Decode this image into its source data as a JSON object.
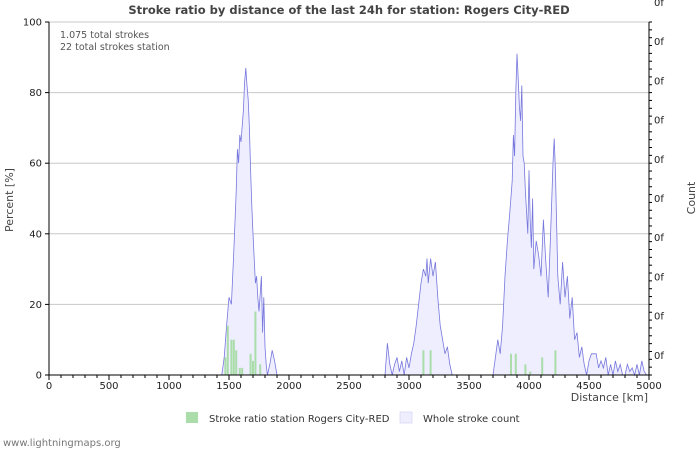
{
  "chart_data": {
    "type": "area",
    "title": "Stroke ratio by distance of the last 24h for station: Rogers City-RED",
    "xlabel": "Distance   [km]",
    "ylabel": "Percent   [%]",
    "ylabel_right": "Count",
    "xlim": [
      0,
      5000
    ],
    "ylim": [
      0,
      100
    ],
    "x_ticks": [
      0,
      500,
      1000,
      1500,
      2000,
      2500,
      3000,
      3500,
      4000,
      4500,
      5000
    ],
    "y_ticks": [
      0,
      20,
      40,
      60,
      80,
      100
    ],
    "right_tick_labels": [
      "0f",
      "0f",
      "0f",
      "0f",
      "0f",
      "0f",
      "0f",
      "0f",
      "0f",
      "0f"
    ],
    "annotations": [
      "1.075 total strokes",
      "22 total strokes station"
    ],
    "legend": [
      "Stroke ratio station Rogers City-RED",
      "Whole stroke count"
    ],
    "series": [
      {
        "name": "Whole stroke count",
        "color": "#7777dd",
        "fill": "#eeeeff",
        "points": [
          [
            1440,
            0
          ],
          [
            1460,
            5
          ],
          [
            1480,
            14
          ],
          [
            1500,
            22
          ],
          [
            1520,
            20
          ],
          [
            1540,
            35
          ],
          [
            1560,
            52
          ],
          [
            1570,
            64
          ],
          [
            1580,
            60
          ],
          [
            1590,
            68
          ],
          [
            1600,
            66
          ],
          [
            1620,
            75
          ],
          [
            1630,
            83
          ],
          [
            1640,
            87
          ],
          [
            1650,
            82
          ],
          [
            1660,
            78
          ],
          [
            1670,
            70
          ],
          [
            1680,
            58
          ],
          [
            1690,
            48
          ],
          [
            1700,
            40
          ],
          [
            1710,
            33
          ],
          [
            1720,
            26
          ],
          [
            1730,
            28
          ],
          [
            1740,
            22
          ],
          [
            1750,
            18
          ],
          [
            1760,
            23
          ],
          [
            1770,
            28
          ],
          [
            1780,
            12
          ],
          [
            1790,
            22
          ],
          [
            1800,
            8
          ],
          [
            1810,
            3
          ],
          [
            1820,
            0
          ],
          [
            1840,
            3
          ],
          [
            1860,
            7
          ],
          [
            1880,
            4
          ],
          [
            1900,
            0
          ],
          [
            2800,
            0
          ],
          [
            2820,
            9
          ],
          [
            2840,
            3
          ],
          [
            2860,
            0
          ],
          [
            2880,
            3
          ],
          [
            2900,
            5
          ],
          [
            2920,
            1
          ],
          [
            2940,
            4
          ],
          [
            2960,
            0
          ],
          [
            2980,
            5
          ],
          [
            3000,
            2
          ],
          [
            3020,
            6
          ],
          [
            3040,
            9
          ],
          [
            3060,
            14
          ],
          [
            3080,
            20
          ],
          [
            3100,
            26
          ],
          [
            3120,
            30
          ],
          [
            3140,
            28
          ],
          [
            3150,
            33
          ],
          [
            3160,
            26
          ],
          [
            3180,
            33
          ],
          [
            3200,
            28
          ],
          [
            3220,
            32
          ],
          [
            3240,
            22
          ],
          [
            3260,
            14
          ],
          [
            3280,
            10
          ],
          [
            3300,
            6
          ],
          [
            3320,
            8
          ],
          [
            3340,
            3
          ],
          [
            3360,
            0
          ],
          [
            3700,
            0
          ],
          [
            3720,
            5
          ],
          [
            3740,
            10
          ],
          [
            3760,
            6
          ],
          [
            3780,
            14
          ],
          [
            3800,
            28
          ],
          [
            3820,
            38
          ],
          [
            3840,
            46
          ],
          [
            3860,
            55
          ],
          [
            3870,
            68
          ],
          [
            3880,
            62
          ],
          [
            3890,
            80
          ],
          [
            3900,
            91
          ],
          [
            3910,
            84
          ],
          [
            3920,
            76
          ],
          [
            3930,
            72
          ],
          [
            3940,
            82
          ],
          [
            3950,
            62
          ],
          [
            3960,
            60
          ],
          [
            3970,
            52
          ],
          [
            3980,
            46
          ],
          [
            3990,
            40
          ],
          [
            4000,
            58
          ],
          [
            4010,
            44
          ],
          [
            4020,
            36
          ],
          [
            4030,
            50
          ],
          [
            4040,
            30
          ],
          [
            4060,
            38
          ],
          [
            4080,
            34
          ],
          [
            4100,
            28
          ],
          [
            4120,
            44
          ],
          [
            4140,
            32
          ],
          [
            4160,
            22
          ],
          [
            4180,
            40
          ],
          [
            4200,
            60
          ],
          [
            4210,
            67
          ],
          [
            4220,
            58
          ],
          [
            4240,
            28
          ],
          [
            4260,
            20
          ],
          [
            4280,
            32
          ],
          [
            4300,
            22
          ],
          [
            4320,
            28
          ],
          [
            4340,
            16
          ],
          [
            4360,
            22
          ],
          [
            4380,
            10
          ],
          [
            4400,
            12
          ],
          [
            4420,
            5
          ],
          [
            4440,
            8
          ],
          [
            4460,
            3
          ],
          [
            4480,
            0
          ],
          [
            4500,
            4
          ],
          [
            4520,
            6
          ],
          [
            4540,
            6
          ],
          [
            4560,
            6
          ],
          [
            4580,
            2
          ],
          [
            4600,
            4
          ],
          [
            4620,
            2
          ],
          [
            4640,
            5
          ],
          [
            4660,
            0
          ],
          [
            4680,
            3
          ],
          [
            4700,
            0
          ],
          [
            4720,
            4
          ],
          [
            4740,
            1
          ],
          [
            4760,
            3
          ],
          [
            4780,
            0
          ],
          [
            4800,
            0
          ],
          [
            4820,
            3
          ],
          [
            4840,
            1
          ],
          [
            4860,
            2
          ],
          [
            4880,
            0
          ],
          [
            4900,
            3
          ],
          [
            4920,
            0
          ],
          [
            4940,
            4
          ],
          [
            4960,
            1
          ],
          [
            4980,
            0
          ],
          [
            5000,
            0
          ]
        ]
      },
      {
        "name": "Stroke ratio station Rogers City-RED",
        "color": "#aaddaa",
        "bars": [
          [
            1470,
            5
          ],
          [
            1490,
            14
          ],
          [
            1520,
            10
          ],
          [
            1540,
            10
          ],
          [
            1560,
            7
          ],
          [
            1590,
            2
          ],
          [
            1610,
            2
          ],
          [
            1680,
            6
          ],
          [
            1700,
            4
          ],
          [
            1720,
            18
          ],
          [
            1760,
            3
          ],
          [
            3120,
            7
          ],
          [
            3180,
            7
          ],
          [
            3850,
            6
          ],
          [
            3890,
            6
          ],
          [
            3970,
            3
          ],
          [
            4010,
            1
          ],
          [
            4110,
            5
          ],
          [
            4220,
            7
          ]
        ]
      }
    ]
  },
  "footer": {
    "credit": "www.lightningmaps.org"
  }
}
